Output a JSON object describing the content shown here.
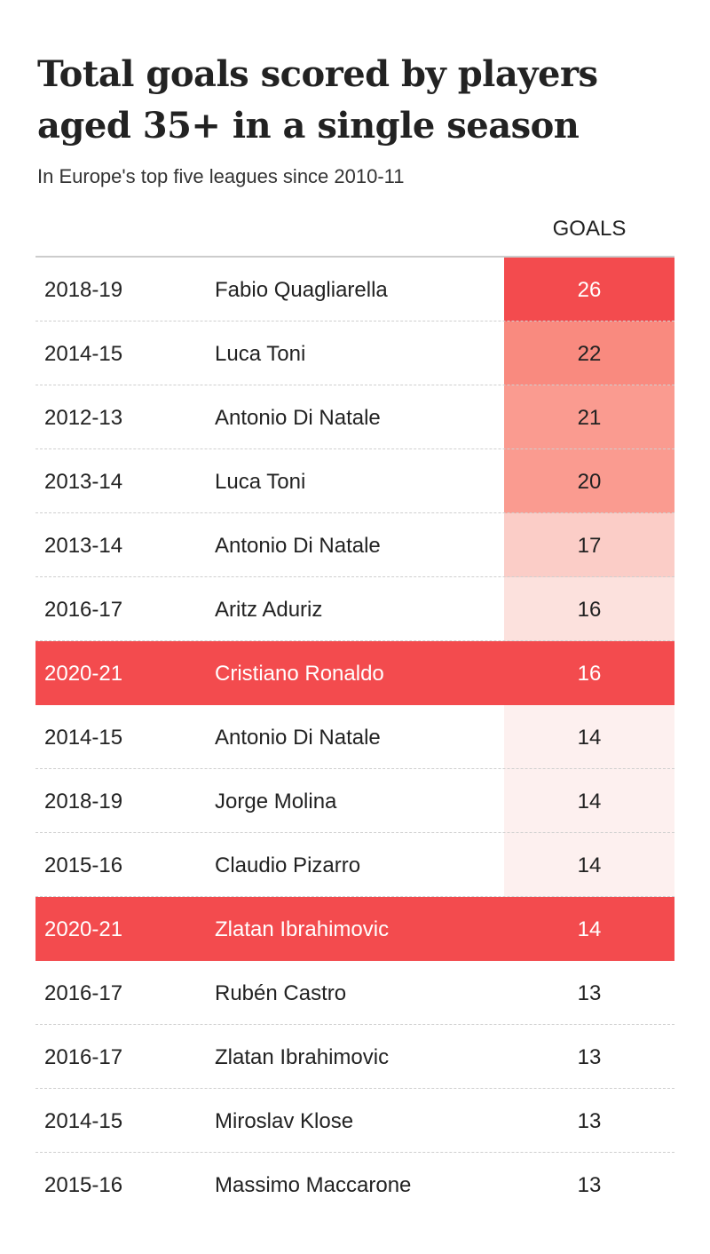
{
  "header": {
    "title": "Total goals scored by players aged 35+ in a single season",
    "subtitle": "In Europe's top five leagues since 2010-11",
    "goals_column": "GOALS"
  },
  "colors": {
    "highlight": "#f34b4e",
    "scale": [
      "#fdf0ef",
      "#fce1dd",
      "#fbcdc7",
      "#fa9b90",
      "#f98a7f",
      "#f34b4e"
    ]
  },
  "chart_data": {
    "type": "table",
    "title": "Total goals scored by players aged 35+ in a single season",
    "subtitle": "In Europe's top five leagues since 2010-11",
    "columns": [
      "",
      "",
      "GOALS"
    ],
    "rows": [
      {
        "season": "2018-19",
        "player": "Fabio Quagliarella",
        "goals": 26,
        "highlight": false,
        "shade": "#f34b4e",
        "goals_text_color": "#ffffff"
      },
      {
        "season": "2014-15",
        "player": "Luca Toni",
        "goals": 22,
        "highlight": false,
        "shade": "#f98a7f",
        "goals_text_color": "#222222"
      },
      {
        "season": "2012-13",
        "player": "Antonio Di Natale",
        "goals": 21,
        "highlight": false,
        "shade": "#fa9b90",
        "goals_text_color": "#222222"
      },
      {
        "season": "2013-14",
        "player": "Luca Toni",
        "goals": 20,
        "highlight": false,
        "shade": "#fa9b90",
        "goals_text_color": "#222222"
      },
      {
        "season": "2013-14",
        "player": "Antonio Di Natale",
        "goals": 17,
        "highlight": false,
        "shade": "#fbcdc7",
        "goals_text_color": "#222222"
      },
      {
        "season": "2016-17",
        "player": "Aritz Aduriz",
        "goals": 16,
        "highlight": false,
        "shade": "#fce1dd",
        "goals_text_color": "#222222"
      },
      {
        "season": "2020-21",
        "player": "Cristiano Ronaldo",
        "goals": 16,
        "highlight": true,
        "shade": "#f34b4e",
        "goals_text_color": "#ffffff"
      },
      {
        "season": "2014-15",
        "player": "Antonio Di Natale",
        "goals": 14,
        "highlight": false,
        "shade": "#fdf0ef",
        "goals_text_color": "#222222"
      },
      {
        "season": "2018-19",
        "player": "Jorge Molina",
        "goals": 14,
        "highlight": false,
        "shade": "#fdf0ef",
        "goals_text_color": "#222222"
      },
      {
        "season": "2015-16",
        "player": "Claudio Pizarro",
        "goals": 14,
        "highlight": false,
        "shade": "#fdf0ef",
        "goals_text_color": "#222222"
      },
      {
        "season": "2020-21",
        "player": "Zlatan Ibrahimovic",
        "goals": 14,
        "highlight": true,
        "shade": "#f34b4e",
        "goals_text_color": "#ffffff"
      },
      {
        "season": "2016-17",
        "player": "Rubén Castro",
        "goals": 13,
        "highlight": false,
        "shade": "#ffffff",
        "goals_text_color": "#222222"
      },
      {
        "season": "2016-17",
        "player": "Zlatan Ibrahimovic",
        "goals": 13,
        "highlight": false,
        "shade": "#ffffff",
        "goals_text_color": "#222222"
      },
      {
        "season": "2014-15",
        "player": "Miroslav Klose",
        "goals": 13,
        "highlight": false,
        "shade": "#ffffff",
        "goals_text_color": "#222222"
      },
      {
        "season": "2015-16",
        "player": "Massimo Maccarone",
        "goals": 13,
        "highlight": false,
        "shade": "#ffffff",
        "goals_text_color": "#222222"
      }
    ]
  }
}
